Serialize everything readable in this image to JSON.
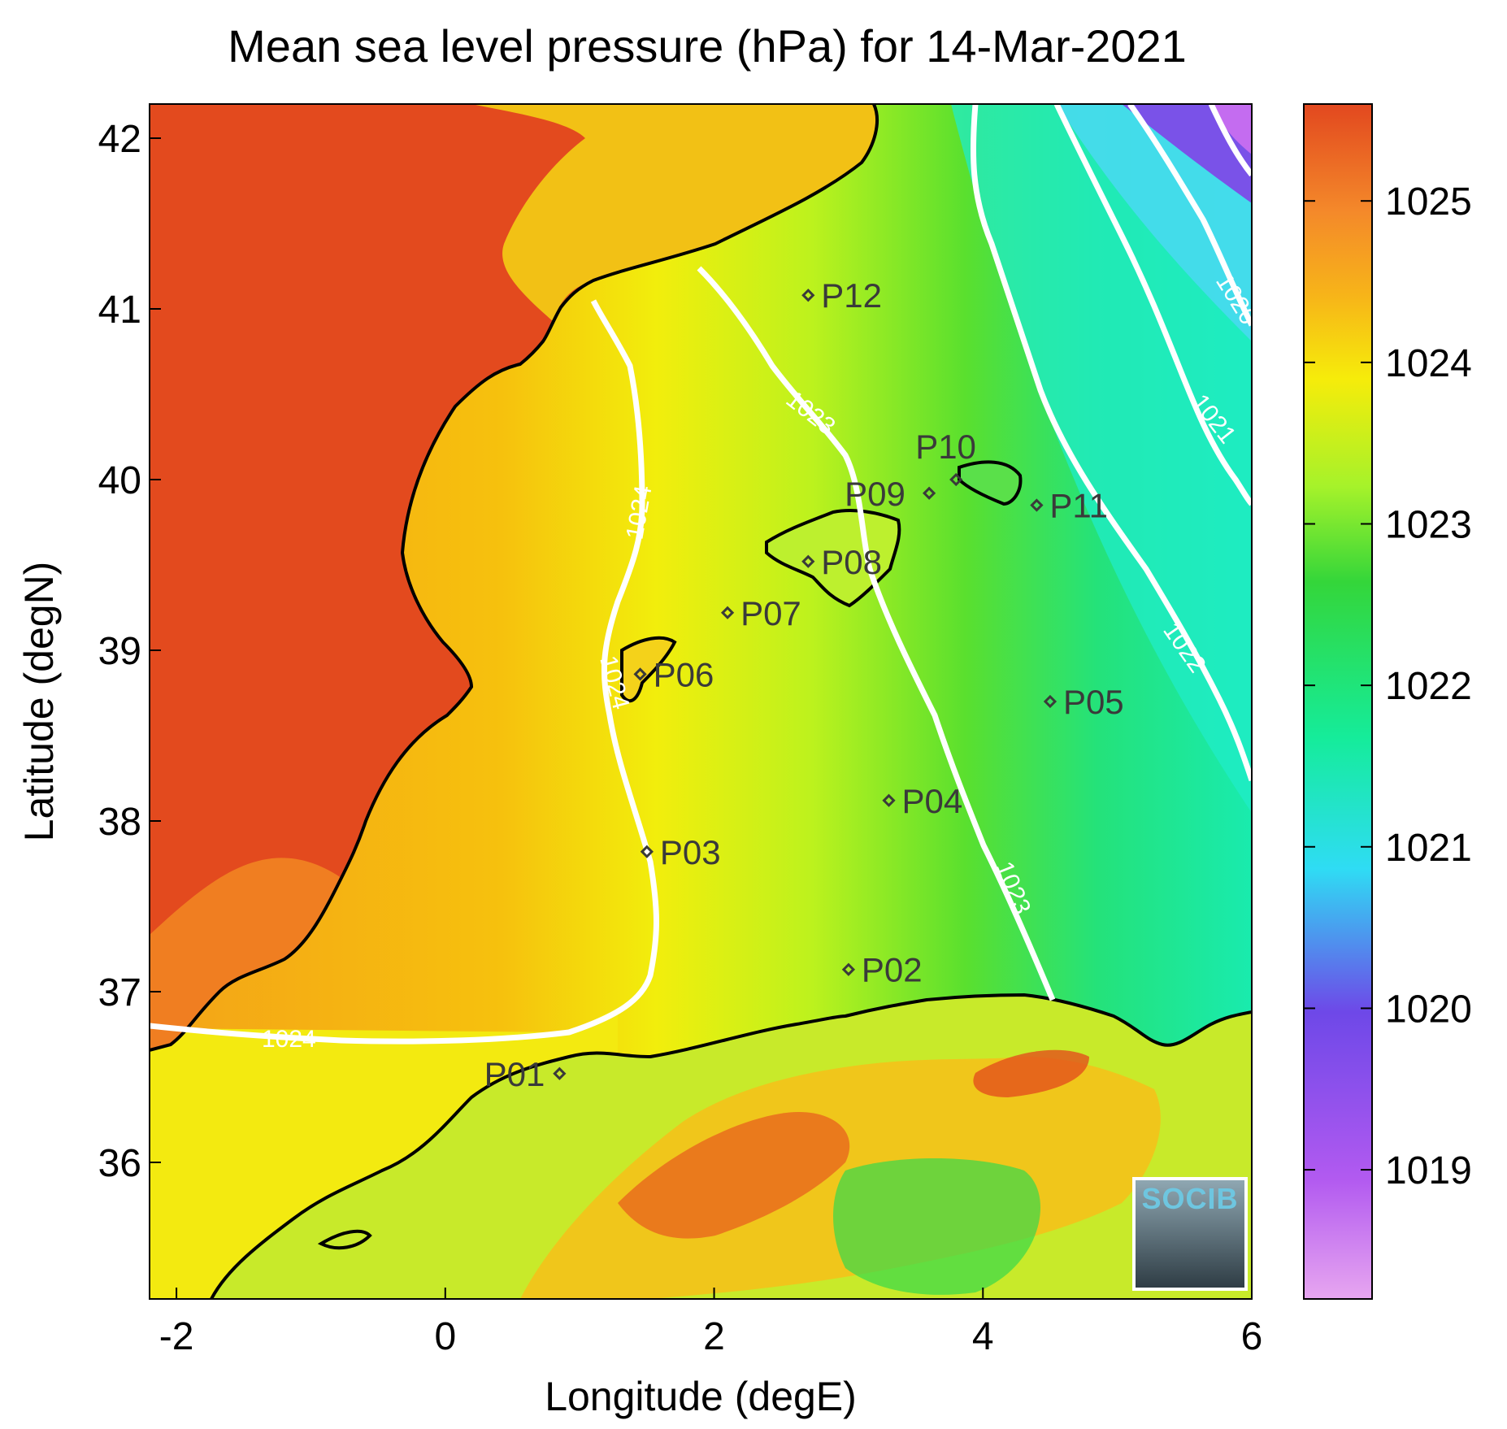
{
  "title": "Mean sea level pressure (hPa) for 14-Mar-2021",
  "axes": {
    "xlabel": "Longitude (degE)",
    "ylabel": "Latitude (degN)",
    "xlim": [
      -2.2,
      6
    ],
    "ylim": [
      35.2,
      42.2
    ],
    "xticks": [
      -2,
      0,
      2,
      4,
      6
    ],
    "yticks": [
      36,
      37,
      38,
      39,
      40,
      41,
      42
    ]
  },
  "colorbar": {
    "range": [
      1018.2,
      1025.6
    ],
    "ticks": [
      1019,
      1020,
      1021,
      1022,
      1023,
      1024,
      1025
    ],
    "colors": [
      "#e7a6f0",
      "#b25af0",
      "#6e48e8",
      "#2fdcf4",
      "#15ec9a",
      "#34d63a",
      "#a6f22a",
      "#f6ec0a",
      "#f7b419",
      "#f4892a",
      "#e2481f"
    ]
  },
  "contour_labels": [
    "1020",
    "1021",
    "1022",
    "1023",
    "1023",
    "1024",
    "1024",
    "1024"
  ],
  "stations": [
    {
      "id": "P01",
      "lon": 0.85,
      "lat": 36.52
    },
    {
      "id": "P02",
      "lon": 3.0,
      "lat": 37.13
    },
    {
      "id": "P03",
      "lon": 1.5,
      "lat": 37.82
    },
    {
      "id": "P04",
      "lon": 3.3,
      "lat": 38.12
    },
    {
      "id": "P05",
      "lon": 4.5,
      "lat": 38.7
    },
    {
      "id": "P06",
      "lon": 1.45,
      "lat": 38.86
    },
    {
      "id": "P07",
      "lon": 2.1,
      "lat": 39.22
    },
    {
      "id": "P08",
      "lon": 2.7,
      "lat": 39.52
    },
    {
      "id": "P09",
      "lon": 3.6,
      "lat": 39.92
    },
    {
      "id": "P10",
      "lon": 3.8,
      "lat": 40.0
    },
    {
      "id": "P11",
      "lon": 4.4,
      "lat": 39.85
    },
    {
      "id": "P12",
      "lon": 2.7,
      "lat": 41.08
    }
  ],
  "logo_text": "SOCIB"
}
